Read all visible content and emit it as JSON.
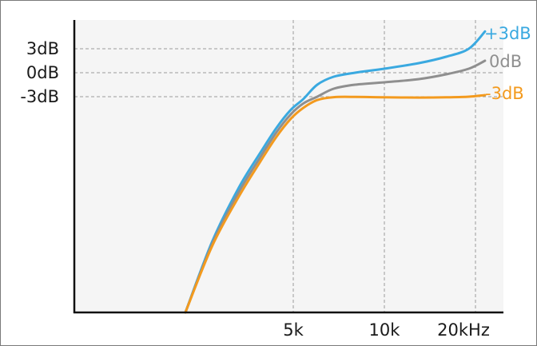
{
  "chart_data": {
    "type": "line",
    "title": "",
    "xlabel": "",
    "ylabel": "",
    "x_scale": "log",
    "xlim": [
      1700,
      25000
    ],
    "ylim": [
      -100,
      5
    ],
    "grid": true,
    "x_ticks": [
      {
        "value": 5000,
        "label": "5k"
      },
      {
        "value": 10000,
        "label": "10k"
      },
      {
        "value": 20000,
        "label": "20kHz"
      }
    ],
    "y_ticks": [
      {
        "value": 3,
        "label": "3dB"
      },
      {
        "value": 0,
        "label": "0dB"
      },
      {
        "value": -3,
        "label": "-3dB"
      }
    ],
    "series": [
      {
        "name": "+3dB",
        "color": "#3aa9e0",
        "x": [
          2200,
          2700,
          3300,
          3900,
          4400,
          4900,
          5400,
          6000,
          6800,
          8000,
          10000,
          13000,
          16000,
          19000,
          21500
        ],
        "y": [
          -100,
          -68,
          -44,
          -28,
          -17,
          -9,
          -4,
          -1.5,
          -0.5,
          0,
          0.5,
          1.2,
          2,
          3,
          4.2
        ]
      },
      {
        "name": "0dB",
        "color": "#8f8f8f",
        "x": [
          2200,
          2700,
          3300,
          3900,
          4400,
          4900,
          5400,
          6000,
          6800,
          8000,
          10000,
          13000,
          16000,
          19000,
          21500
        ],
        "y": [
          -100,
          -69,
          -46,
          -30,
          -19,
          -11,
          -6,
          -3,
          -2,
          -1.5,
          -1.2,
          -0.8,
          -0.2,
          0.5,
          1.5
        ]
      },
      {
        "name": "-3dB",
        "color": "#f39a1e",
        "x": [
          2200,
          2700,
          3300,
          3900,
          4400,
          4900,
          5400,
          6000,
          6800,
          8000,
          10000,
          13000,
          16000,
          19000,
          21500
        ],
        "y": [
          -100,
          -70,
          -48,
          -32,
          -21,
          -13,
          -8,
          -4.5,
          -3.2,
          -3.1,
          -3.3,
          -3.4,
          -3.3,
          -3,
          -2.8
        ]
      }
    ]
  }
}
